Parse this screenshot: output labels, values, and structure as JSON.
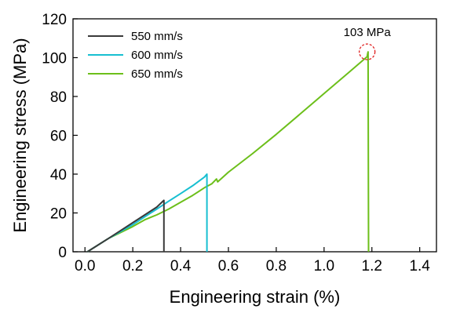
{
  "chart_data": {
    "type": "line",
    "xlabel": "Engineering strain (%)",
    "ylabel": "Engineering stress (MPa)",
    "xlim": [
      -0.05,
      1.47
    ],
    "ylim": [
      0,
      120
    ],
    "xticks": [
      "0.0",
      "0.2",
      "0.4",
      "0.6",
      "0.8",
      "1.0",
      "1.2",
      "1.4"
    ],
    "xtick_values": [
      0.0,
      0.2,
      0.4,
      0.6,
      0.8,
      1.0,
      1.2,
      1.4
    ],
    "yticks": [
      "0",
      "20",
      "40",
      "60",
      "80",
      "100",
      "120"
    ],
    "ytick_values": [
      0,
      20,
      40,
      60,
      80,
      100,
      120
    ],
    "grid": false,
    "legend_position": "top-left",
    "series": [
      {
        "name": "550 mm/s",
        "color": "#3a3a3a",
        "x": [
          0.01,
          0.1,
          0.15,
          0.2,
          0.25,
          0.3,
          0.33,
          0.33
        ],
        "y": [
          0,
          7,
          11,
          15,
          19,
          23,
          26.5,
          0
        ]
      },
      {
        "name": "600 mm/s",
        "color": "#17bfd1",
        "x": [
          0.01,
          0.1,
          0.15,
          0.2,
          0.25,
          0.3,
          0.35,
          0.4,
          0.45,
          0.5,
          0.51,
          0.51
        ],
        "y": [
          0,
          7,
          10.5,
          14,
          18,
          22,
          26,
          30,
          34,
          38.5,
          40,
          0
        ]
      },
      {
        "name": "650 mm/s",
        "color": "#6cbf1a",
        "x": [
          0.01,
          0.1,
          0.15,
          0.2,
          0.25,
          0.28,
          0.3,
          0.35,
          0.4,
          0.45,
          0.5,
          0.53,
          0.55,
          0.555,
          0.6,
          0.7,
          0.8,
          0.9,
          1.0,
          1.1,
          1.18,
          1.182,
          1.184,
          1.186
        ],
        "y": [
          0,
          7,
          10,
          13,
          16.5,
          18,
          19,
          22,
          25.5,
          29,
          33,
          35,
          37.5,
          36,
          41,
          50.5,
          60.5,
          71,
          81.5,
          92,
          100.5,
          102,
          103,
          0
        ]
      }
    ],
    "annotations": [
      {
        "text": "103 MPa",
        "x": 1.18,
        "y": 103,
        "marker": "dashed-circle",
        "color": "#e02020"
      }
    ]
  }
}
